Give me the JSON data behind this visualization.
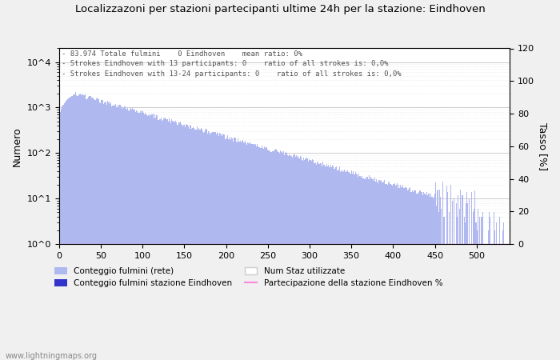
{
  "title": "Localizzazoni per stazioni partecipanti ultime 24h per la stazione: Eindhoven",
  "annotation_lines": [
    "83.974 Totale fulmini    0 Eindhoven    mean ratio: 0%",
    "Strokes Eindhoven with 13 participants: 0    ratio of all strokes is: 0,0%",
    "Strokes Eindhoven with 13-24 participants: 0    ratio of all strokes is: 0,0%"
  ],
  "ylabel_left": "Numero",
  "ylabel_right": "Tasso [%]",
  "xlim": [
    0,
    540
  ],
  "ylim_right": [
    0,
    120
  ],
  "yticks_right": [
    0,
    20,
    40,
    60,
    80,
    100,
    120
  ],
  "bar_color_main": "#b0b8f0",
  "bar_color_station": "#3333cc",
  "line_color_participation": "#ff88dd",
  "plot_bg_color": "#ffffff",
  "fig_bg_color": "#f0f0f0",
  "watermark": "www.lightningmaps.org",
  "legend_entries": [
    "Conteggio fulmini (rete)",
    "Conteggio fulmini stazione Eindhoven",
    "Num Staz utilizzate",
    "Partecipazione della stazione Eindhoven %"
  ],
  "xticks": [
    0,
    50,
    100,
    150,
    200,
    250,
    300,
    350,
    400,
    450,
    500
  ]
}
